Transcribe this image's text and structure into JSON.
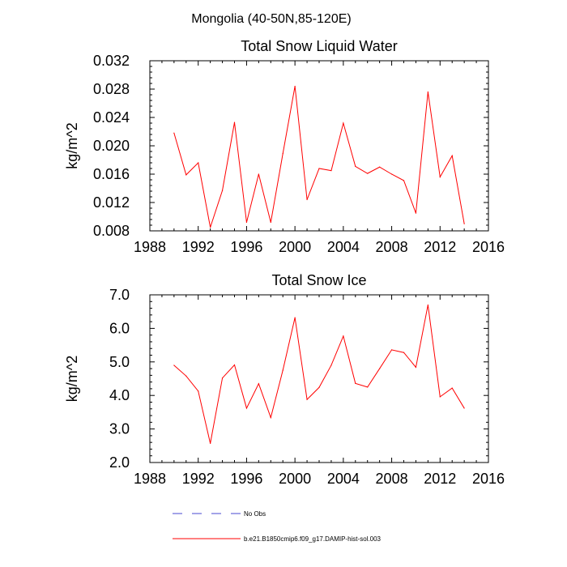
{
  "figure": {
    "title": "Mongolia (40-50N,85-120E)",
    "legend": [
      {
        "label": "No Obs",
        "color": "#4a4ad0",
        "dash": true
      },
      {
        "label": "b.e21.B1850cmip6.f09_g17.DAMIP-hist-sol.003",
        "color": "#ff0000",
        "dash": false
      }
    ]
  },
  "chart_data": [
    {
      "type": "line",
      "title": "Total Snow Liquid Water",
      "xlabel": "",
      "ylabel": "kg/m^2",
      "xlim": [
        1988,
        2016
      ],
      "ylim": [
        0.008,
        0.032
      ],
      "xticks": [
        1988,
        1992,
        1996,
        2000,
        2004,
        2008,
        2012,
        2016
      ],
      "yticks": [
        0.008,
        0.012,
        0.016,
        0.02,
        0.024,
        0.028,
        0.032
      ],
      "ytick_labels": [
        "0.008",
        "0.012",
        "0.016",
        "0.020",
        "0.024",
        "0.028",
        "0.032"
      ],
      "x": [
        1990,
        1991,
        1992,
        1993,
        1994,
        1995,
        1996,
        1997,
        1998,
        1999,
        2000,
        2001,
        2002,
        2003,
        2004,
        2005,
        2006,
        2007,
        2008,
        2009,
        2010,
        2011,
        2012,
        2013,
        2014
      ],
      "series": [
        {
          "name": "b.e21.B1850cmip6.f09_g17.DAMIP-hist-sol.003",
          "color": "#ff0000",
          "values": [
            0.0218,
            0.0159,
            0.0176,
            0.0085,
            0.0137,
            0.0233,
            0.0092,
            0.016,
            0.0092,
            0.0189,
            0.0284,
            0.0124,
            0.0168,
            0.0165,
            0.0232,
            0.0171,
            0.0161,
            0.017,
            0.016,
            0.0151,
            0.0105,
            0.0276,
            0.0156,
            0.0186,
            0.009
          ]
        }
      ]
    },
    {
      "type": "line",
      "title": "Total Snow Ice",
      "xlabel": "",
      "ylabel": "kg/m^2",
      "xlim": [
        1988,
        2016
      ],
      "ylim": [
        2.0,
        7.0
      ],
      "xticks": [
        1988,
        1992,
        1996,
        2000,
        2004,
        2008,
        2012,
        2016
      ],
      "yticks": [
        2.0,
        3.0,
        4.0,
        5.0,
        6.0,
        7.0
      ],
      "ytick_labels": [
        "2.0",
        "3.0",
        "4.0",
        "5.0",
        "6.0",
        "7.0"
      ],
      "x": [
        1990,
        1991,
        1992,
        1993,
        1994,
        1995,
        1996,
        1997,
        1998,
        1999,
        2000,
        2001,
        2002,
        2003,
        2004,
        2005,
        2006,
        2007,
        2008,
        2009,
        2010,
        2011,
        2012,
        2013,
        2014
      ],
      "series": [
        {
          "name": "b.e21.B1850cmip6.f09_g17.DAMIP-hist-sol.003",
          "color": "#ff0000",
          "values": [
            4.9,
            4.58,
            4.13,
            2.57,
            4.52,
            4.91,
            3.62,
            4.35,
            3.34,
            4.75,
            6.32,
            3.88,
            4.24,
            4.9,
            5.77,
            4.36,
            4.25,
            4.8,
            5.36,
            5.28,
            4.84,
            6.7,
            3.96,
            4.22,
            3.62
          ]
        }
      ]
    }
  ]
}
